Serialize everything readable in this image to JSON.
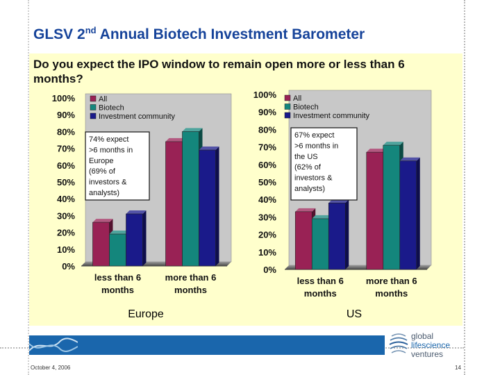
{
  "slide": {
    "title": "GLSV 2",
    "title_sup": "nd",
    "title_rest": " Annual Biotech Investment Barometer",
    "question": "Do you expect the IPO window to remain open more or less than 6 months?",
    "date": "October 4, 2006",
    "page": "14",
    "logo_lines": [
      "global",
      "lifescience",
      "ventures"
    ]
  },
  "colors": {
    "title": "#16439a",
    "panel": "#ffffcc",
    "all": "#992255",
    "biotech": "#14867c",
    "investment": "#1a1a8a",
    "footer": "#1a66ac"
  },
  "chart_data": [
    {
      "type": "bar",
      "title": "Europe",
      "categories": [
        "less than 6 months",
        "more than 6 months"
      ],
      "series": [
        {
          "name": "All",
          "values": [
            26,
            74
          ]
        },
        {
          "name": "Biotech",
          "values": [
            19,
            80
          ]
        },
        {
          "name": "Investment community",
          "values": [
            31,
            69
          ]
        }
      ],
      "ylim": [
        0,
        100
      ],
      "yticks": [
        "0%",
        "10%",
        "20%",
        "30%",
        "40%",
        "50%",
        "60%",
        "70%",
        "80%",
        "90%",
        "100%"
      ],
      "legend": "top-left",
      "annotation": [
        "74% expect",
        ">6 months in",
        "Europe",
        "(69% of",
        "investors &",
        "analysts)"
      ]
    },
    {
      "type": "bar",
      "title": "US",
      "categories": [
        "less than 6 months",
        "more than 6 months"
      ],
      "series": [
        {
          "name": "All",
          "values": [
            33,
            67
          ]
        },
        {
          "name": "Biotech",
          "values": [
            29,
            71
          ]
        },
        {
          "name": "Investment community",
          "values": [
            38,
            62
          ]
        }
      ],
      "ylim": [
        0,
        100
      ],
      "yticks": [
        "0%",
        "10%",
        "20%",
        "30%",
        "40%",
        "50%",
        "60%",
        "70%",
        "80%",
        "90%",
        "100%"
      ],
      "legend": "top-left",
      "annotation": [
        "67% expect",
        ">6 months in",
        "the US",
        "(62% of",
        "investors &",
        "analysts)"
      ]
    }
  ]
}
